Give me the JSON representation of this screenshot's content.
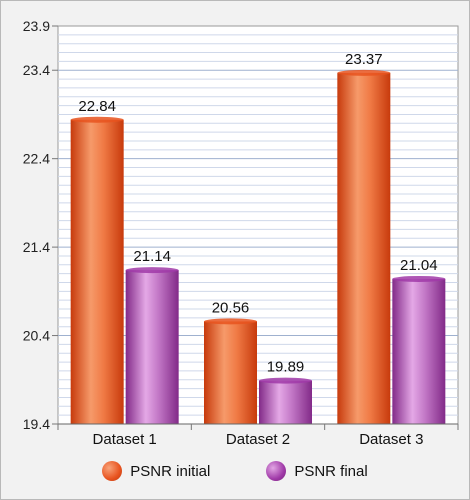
{
  "chart_data": {
    "type": "bar",
    "categories": [
      "Dataset 1",
      "Dataset 2",
      "Dataset 3"
    ],
    "series": [
      {
        "name": "PSNR initial",
        "values": [
          22.84,
          20.56,
          23.37
        ],
        "color": "#e8531f"
      },
      {
        "name": "PSNR final",
        "values": [
          21.14,
          19.89,
          21.04
        ],
        "color": "#a03aa8"
      }
    ],
    "yticks": [
      "19.4",
      "20.4",
      "21.4",
      "22.4",
      "23.4",
      "23.9"
    ],
    "ylim": [
      19.4,
      23.9
    ],
    "grid": true,
    "legend_position": "bottom",
    "title": "",
    "xlabel": "",
    "ylabel": ""
  }
}
